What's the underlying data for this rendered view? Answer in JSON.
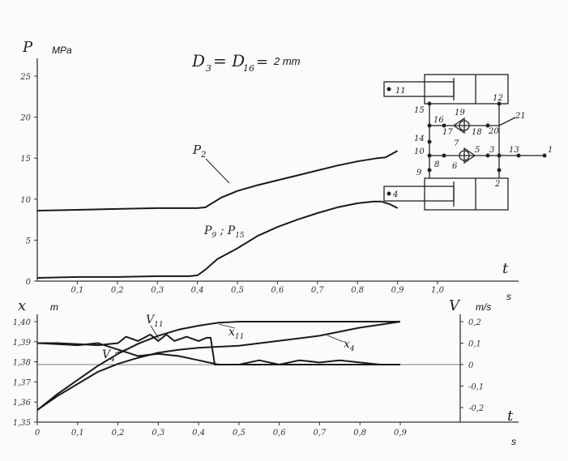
{
  "figure": {
    "formula_lhs": "D",
    "formula_sub1": "3",
    "formula_mid": " = D",
    "formula_sub2": "16",
    "formula_eq": " = ",
    "formula_value": "2 mm"
  },
  "chart_data": [
    {
      "type": "line",
      "ylabel_symbol": "P",
      "yunit": "MPa",
      "xlabel_symbol": "t",
      "xunit": "s",
      "xlim": [
        0,
        1.0
      ],
      "ylim": [
        0,
        25
      ],
      "x_ticks": [
        "0,1",
        "0,2",
        "0,3",
        "0,4",
        "0,5",
        "0,6",
        "0,7",
        "0,8",
        "0,9",
        "1,0"
      ],
      "y_ticks": [
        "0",
        "5",
        "10",
        "15",
        "20",
        "25"
      ],
      "series": [
        {
          "name": "P₂",
          "x": [
            0.0,
            0.1,
            0.2,
            0.3,
            0.4,
            0.42,
            0.46,
            0.5,
            0.55,
            0.6,
            0.65,
            0.7,
            0.75,
            0.8,
            0.85,
            0.87,
            0.9
          ],
          "y": [
            8.6,
            8.7,
            8.8,
            8.9,
            8.9,
            9.0,
            10.2,
            11.0,
            11.7,
            12.3,
            12.9,
            13.5,
            14.1,
            14.6,
            15.0,
            15.1,
            15.9
          ]
        },
        {
          "name": "P₉ ; P₁₅",
          "x": [
            0.0,
            0.1,
            0.2,
            0.3,
            0.38,
            0.4,
            0.42,
            0.45,
            0.5,
            0.55,
            0.6,
            0.65,
            0.7,
            0.75,
            0.8,
            0.84,
            0.86,
            0.88,
            0.9
          ],
          "y": [
            0.4,
            0.5,
            0.5,
            0.6,
            0.6,
            0.7,
            1.4,
            2.7,
            4.0,
            5.5,
            6.6,
            7.5,
            8.3,
            9.0,
            9.5,
            9.7,
            9.7,
            9.4,
            8.9
          ]
        }
      ]
    },
    {
      "type": "line",
      "ylabel_symbol": "x",
      "yunit": "m",
      "y2label_symbol": "V",
      "y2unit": "m/s",
      "xlabel_symbol": "t",
      "xunit": "s",
      "xlim": [
        0,
        0.9
      ],
      "ylim": [
        1.35,
        1.4
      ],
      "y2lim": [
        -0.2,
        0.2
      ],
      "x_ticks": [
        "0",
        "0,1",
        "0,2",
        "0,3",
        "0,4",
        "0,5",
        "0,6",
        "0,7",
        "0,8",
        "0,9"
      ],
      "y_ticks": [
        "1,35",
        "1,36",
        "1,37",
        "1,38",
        "1,39",
        "1,40"
      ],
      "y2_ticks": [
        "-0,2",
        "-0,1",
        "0",
        "0,1",
        "0,2"
      ],
      "series": [
        {
          "name": "x₁₁",
          "axis": "left",
          "x": [
            0.0,
            0.05,
            0.1,
            0.15,
            0.2,
            0.25,
            0.3,
            0.35,
            0.4,
            0.45,
            0.5,
            0.6,
            0.7,
            0.8,
            0.9
          ],
          "y": [
            1.356,
            1.364,
            1.371,
            1.378,
            1.384,
            1.389,
            1.393,
            1.396,
            1.398,
            1.3995,
            1.4,
            1.4,
            1.4,
            1.4,
            1.4
          ]
        },
        {
          "name": "x₄",
          "axis": "left",
          "x": [
            0.0,
            0.05,
            0.1,
            0.15,
            0.2,
            0.25,
            0.3,
            0.35,
            0.4,
            0.45,
            0.5,
            0.6,
            0.7,
            0.75,
            0.8,
            0.85,
            0.9
          ],
          "y": [
            1.356,
            1.363,
            1.369,
            1.375,
            1.379,
            1.382,
            1.3845,
            1.386,
            1.387,
            1.3875,
            1.388,
            1.3905,
            1.393,
            1.395,
            1.397,
            1.3985,
            1.4
          ]
        },
        {
          "name": "V₁₁",
          "axis": "right",
          "x": [
            0.0,
            0.05,
            0.1,
            0.15,
            0.2,
            0.22,
            0.25,
            0.28,
            0.3,
            0.32,
            0.34,
            0.37,
            0.4,
            0.42,
            0.43,
            0.44,
            0.46,
            0.5,
            0.6,
            0.7,
            0.8,
            0.9
          ],
          "y": [
            0.1,
            0.1,
            0.095,
            0.09,
            0.1,
            0.13,
            0.11,
            0.14,
            0.11,
            0.14,
            0.11,
            0.13,
            0.11,
            0.125,
            0.125,
            0.0,
            0.0,
            0.0,
            0.0,
            0.0,
            0.0,
            0.0
          ]
        },
        {
          "name": "V₄",
          "axis": "right",
          "x": [
            0.0,
            0.05,
            0.1,
            0.15,
            0.2,
            0.25,
            0.3,
            0.35,
            0.4,
            0.45,
            0.5,
            0.55,
            0.6,
            0.65,
            0.7,
            0.75,
            0.8,
            0.85,
            0.9
          ],
          "y": [
            0.1,
            0.095,
            0.09,
            0.1,
            0.07,
            0.04,
            0.05,
            0.04,
            0.02,
            0.0,
            0.0,
            0.02,
            0.0,
            0.02,
            0.01,
            0.02,
            0.01,
            0.0,
            0.0
          ]
        }
      ]
    }
  ],
  "diagram": {
    "labels": [
      "11",
      "12",
      "15",
      "16",
      "19",
      "17",
      "18",
      "20",
      "21",
      "14",
      "10",
      "7",
      "5",
      "3",
      "13",
      "1",
      "8",
      "6",
      "9",
      "4",
      "2"
    ]
  }
}
